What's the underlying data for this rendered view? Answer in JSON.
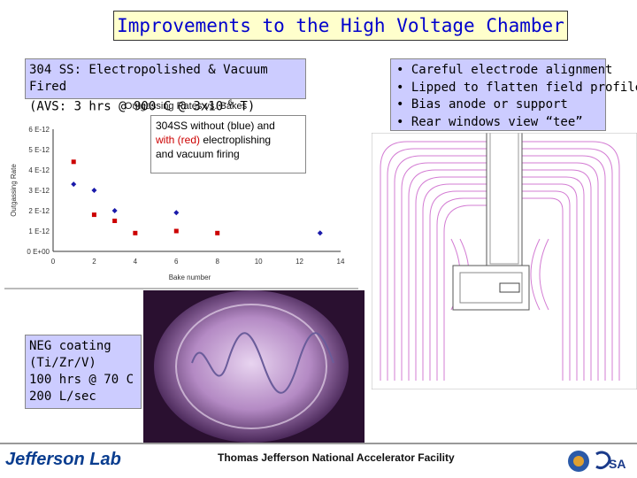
{
  "title": "Improvements to the High Voltage Chamber",
  "caption_ss": {
    "line1": "304 SS: Electropolished & Vacuum Fired",
    "line2_pre": "(AVS: 3 hrs @ 900 C @ 3x10",
    "line2_sup": "-6",
    "line2_post": " T)"
  },
  "bullets": [
    "• Careful electrode alignment",
    "• Lipped to flatten field profile",
    "• Bias anode or support",
    "• Rear windows view “tee”"
  ],
  "neg_caption": [
    "NEG coating",
    "(Ti/Zr/V)",
    "100 hrs @ 70 C",
    "200 L/sec"
  ],
  "annotation": {
    "part1": "304SS without (blue) and",
    "with_word": "with (red)",
    "part2": " electroplishing",
    "line3": "and vacuum firing"
  },
  "footer": {
    "lab_name": "Jefferson Lab",
    "facility": "Thomas Jefferson National Accelerator Facility"
  },
  "colors": {
    "title_text": "#0000cc",
    "title_bg": "#ffffcc",
    "caption_bg": "#ccccff",
    "blue_series": "#1a1aaa",
    "red_series": "#cc0000",
    "field_lines": "#cc66cc"
  },
  "chart_data": {
    "type": "scatter",
    "title": "Outgassing Rates vs. Bakes",
    "xlabel": "Bake number",
    "ylabel": "Outgassing Rate",
    "xlim": [
      0,
      14
    ],
    "ylim": [
      0,
      6e-12
    ],
    "xticks": [
      "0",
      "2",
      "4",
      "6",
      "8",
      "10",
      "12",
      "14"
    ],
    "yticks": [
      "0 E+00",
      "1 E-12",
      "2 E-12",
      "3 E-12",
      "4 E-12",
      "5 E-12",
      "6 E-12"
    ],
    "series": [
      {
        "x": [
          1,
          2,
          3,
          6,
          13
        ],
        "values": [
          3.3e-12,
          3e-12,
          2e-12,
          1.9e-12,
          9e-13
        ]
      },
      {
        "x": [
          1,
          2,
          3,
          4,
          6,
          8
        ],
        "values": [
          4.4e-12,
          1.8e-12,
          1.5e-12,
          9e-13,
          1e-12,
          9e-13
        ]
      }
    ]
  }
}
